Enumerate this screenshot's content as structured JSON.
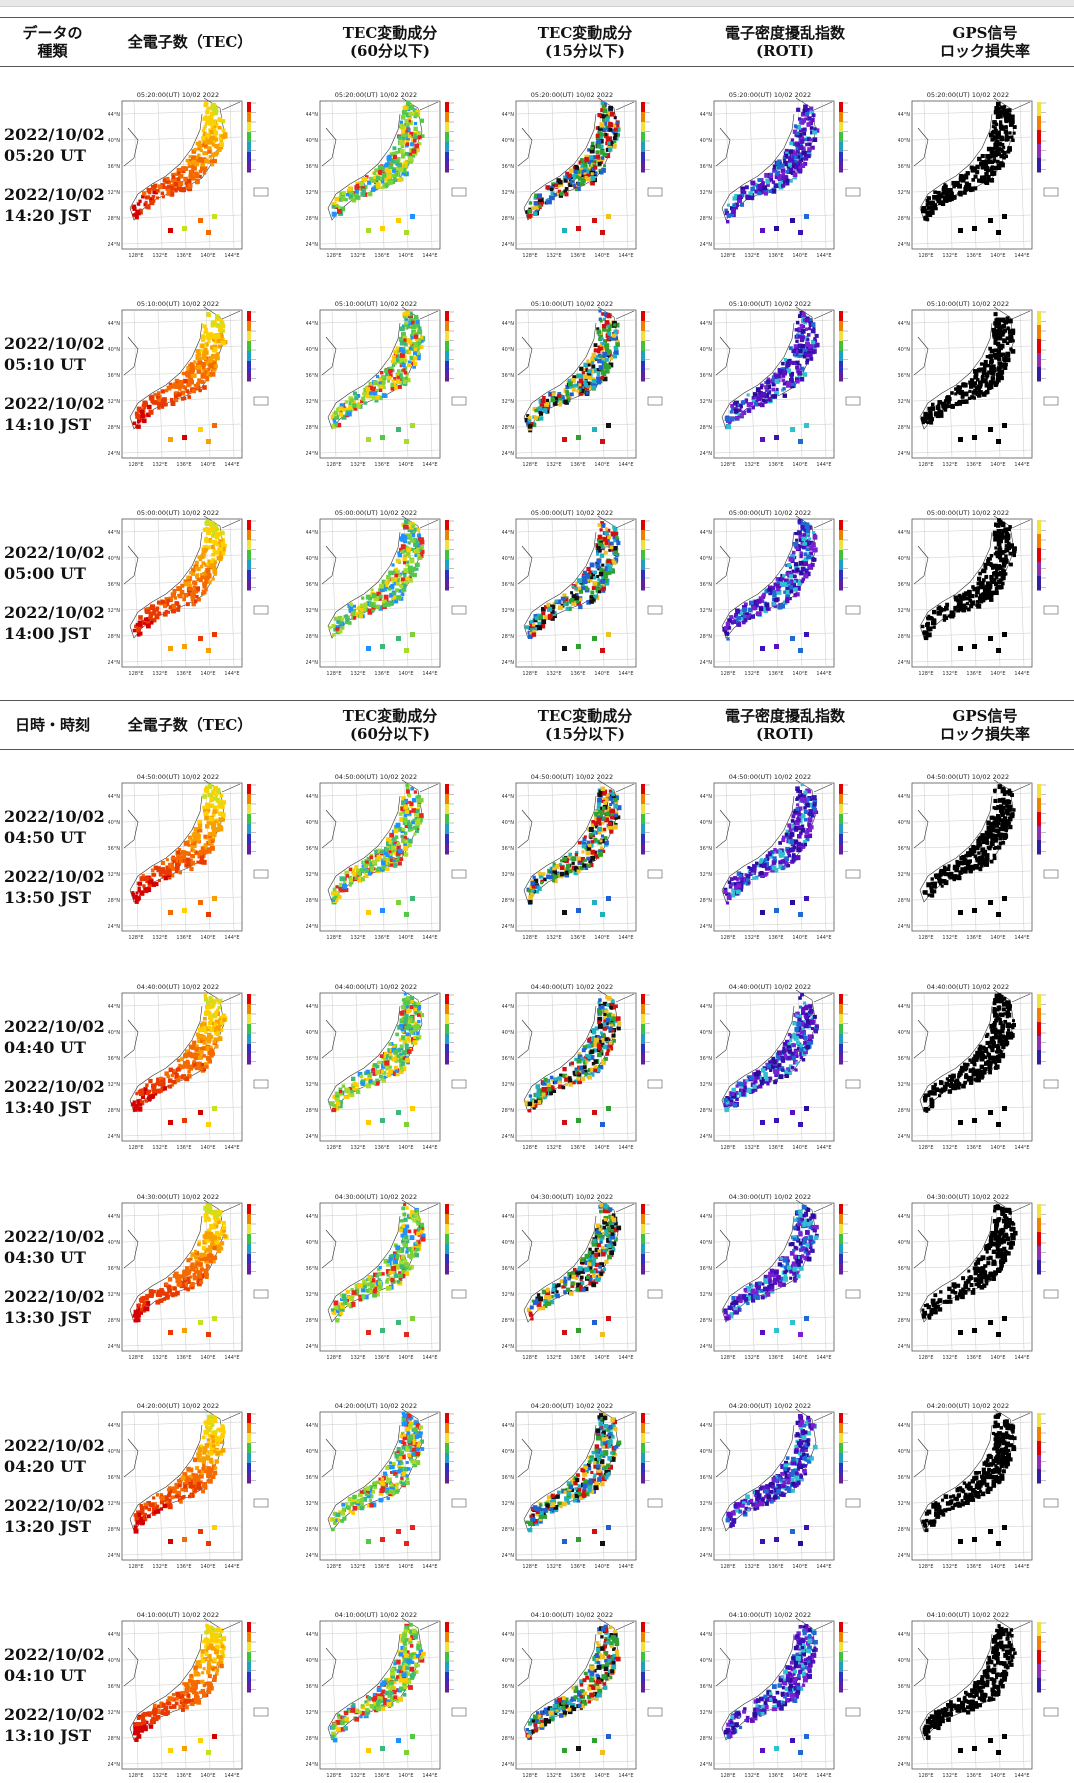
{
  "header_top": [
    "データの\n種類",
    "全電子数（TEC）",
    "TEC変動成分\n(60分以下)",
    "TEC変動成分\n(15分以下)",
    "電子密度擾乱指数\n(ROTI)",
    "GPS信号\nロック損失率"
  ],
  "header_mid": [
    "日時・時刻",
    "全電子数（TEC）",
    "TEC変動成分\n(60分以下)",
    "TEC変動成分\n(15分以下)",
    "電子密度擾乱指数\n(ROTI)",
    "GPS信号\nロック損失率"
  ],
  "map_axis": {
    "lat_ticks": [
      "44°N",
      "40°N",
      "36°N",
      "32°N",
      "28°N",
      "24°N"
    ],
    "lon_ticks": [
      "128°E",
      "132°E",
      "136°E",
      "140°E",
      "144°E"
    ]
  },
  "rows": [
    {
      "ut": "2022/10/02\n05:20 UT",
      "jst": "2022/10/02\n14:20 JST",
      "map_title": "05:20:00(UT) 10/02 2022"
    },
    {
      "ut": "2022/10/02\n05:10 UT",
      "jst": "2022/10/02\n14:10 JST",
      "map_title": "05:10:00(UT) 10/02 2022"
    },
    {
      "ut": "2022/10/02\n05:00 UT",
      "jst": "2022/10/02\n14:00 JST",
      "map_title": "05:00:00(UT) 10/02 2022"
    },
    {
      "ut": "2022/10/02\n04:50 UT",
      "jst": "2022/10/02\n13:50 JST",
      "map_title": "04:50:00(UT) 10/02 2022"
    },
    {
      "ut": "2022/10/02\n04:40 UT",
      "jst": "2022/10/02\n13:40 JST",
      "map_title": "04:40:00(UT) 10/02 2022"
    },
    {
      "ut": "2022/10/02\n04:30 UT",
      "jst": "2022/10/02\n13:30 JST",
      "map_title": "04:30:00(UT) 10/02 2022"
    },
    {
      "ut": "2022/10/02\n04:20 UT",
      "jst": "2022/10/02\n13:20 JST",
      "map_title": "04:20:00(UT) 10/02 2022"
    },
    {
      "ut": "2022/10/02\n04:10 UT",
      "jst": "2022/10/02\n13:10 JST",
      "map_title": "04:10:00(UT) 10/02 2022"
    }
  ],
  "colors": {
    "tec": [
      "#d40000",
      "#e83a00",
      "#f46a00",
      "#f8a000",
      "#ffd000",
      "#c8e020"
    ],
    "dtec60": [
      "#52c84a",
      "#7fd13a",
      "#a9db2c",
      "#3db87a",
      "#ffcc00",
      "#e52620",
      "#1e90ff"
    ],
    "dtec15": [
      "#d01010",
      "#111111",
      "#2060d0",
      "#20b0c0",
      "#f0c020",
      "#30a030"
    ],
    "roti": [
      "#3a12b8",
      "#5a10c0",
      "#2c0c9a",
      "#7a20d0",
      "#1e6ad0",
      "#30c0d0"
    ],
    "lol": [
      "#000000"
    ]
  }
}
